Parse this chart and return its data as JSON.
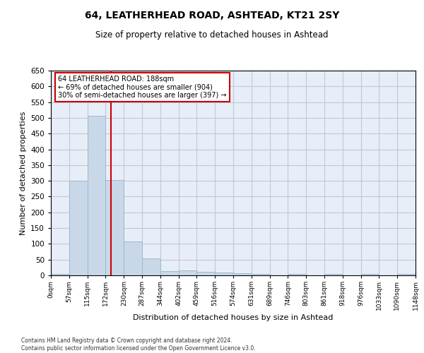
{
  "title": "64, LEATHERHEAD ROAD, ASHTEAD, KT21 2SY",
  "subtitle": "Size of property relative to detached houses in Ashtead",
  "xlabel": "Distribution of detached houses by size in Ashtead",
  "ylabel": "Number of detached properties",
  "bin_labels": [
    "0sqm",
    "57sqm",
    "115sqm",
    "172sqm",
    "230sqm",
    "287sqm",
    "344sqm",
    "402sqm",
    "459sqm",
    "516sqm",
    "574sqm",
    "631sqm",
    "689sqm",
    "746sqm",
    "803sqm",
    "861sqm",
    "918sqm",
    "976sqm",
    "1033sqm",
    "1090sqm",
    "1148sqm"
  ],
  "bar_values": [
    5,
    300,
    507,
    303,
    107,
    53,
    14,
    15,
    11,
    8,
    6,
    5,
    0,
    5,
    0,
    5,
    0,
    5,
    0,
    5
  ],
  "bar_color": "#c8d8e8",
  "bar_edge_color": "#a0b8cc",
  "annotation_text": "64 LEATHERHEAD ROAD: 188sqm\n← 69% of detached houses are smaller (904)\n30% of semi-detached houses are larger (397) →",
  "annotation_box_color": "#ffffff",
  "annotation_box_edge_color": "#cc0000",
  "vline_x": 188,
  "vline_color": "#cc0000",
  "ylim": [
    0,
    650
  ],
  "yticks": [
    0,
    50,
    100,
    150,
    200,
    250,
    300,
    350,
    400,
    450,
    500,
    550,
    600,
    650
  ],
  "grid_color": "#c0c8d8",
  "bg_color": "#e8eef8",
  "footer": "Contains HM Land Registry data © Crown copyright and database right 2024.\nContains public sector information licensed under the Open Government Licence v3.0.",
  "bin_edges": [
    0,
    57,
    115,
    172,
    230,
    287,
    344,
    402,
    459,
    516,
    574,
    631,
    689,
    746,
    803,
    861,
    918,
    976,
    1033,
    1090,
    1148
  ]
}
